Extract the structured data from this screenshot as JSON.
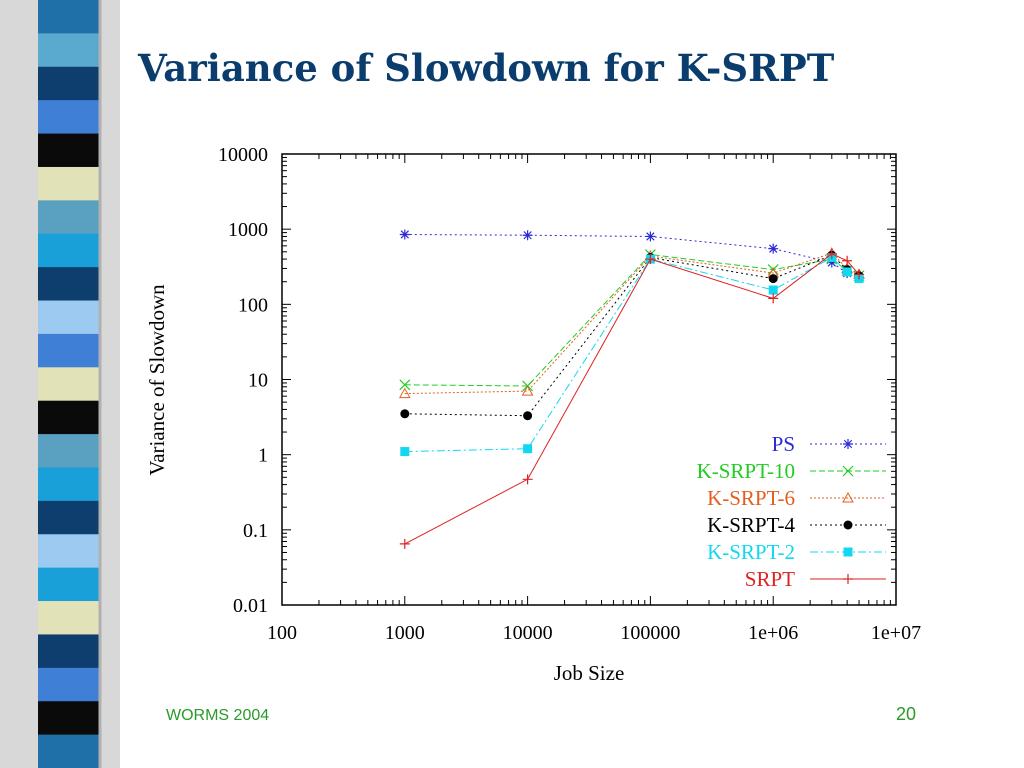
{
  "slide": {
    "title": "Variance of Slowdown for K-SRPT",
    "footer_left": "WORMS 2004",
    "page_number": "20",
    "stripe_colors": [
      "#1f6fa8",
      "#5aaad0",
      "#0d3e6e",
      "#3f7fd6",
      "#0a0a0a",
      "#e2e2b8",
      "#5aa0c0",
      "#1aa0d8",
      "#0d3e6e",
      "#9ccaf0",
      "#3f7fd6",
      "#e2e2b8",
      "#0a0a0a",
      "#5aa0c0",
      "#1aa0d8",
      "#0d3e6e",
      "#9ccaf0",
      "#1aa0d8",
      "#e2e2b8",
      "#0d3e6e",
      "#3f7fd6",
      "#0a0a0a",
      "#1f6fa8"
    ]
  },
  "chart_data": {
    "type": "line",
    "xlabel": "Job Size",
    "ylabel": "Variance of Slowdown",
    "x_scale": "log",
    "y_scale": "log",
    "xlim": [
      100,
      10000000
    ],
    "ylim": [
      0.01,
      10000
    ],
    "x_ticks": [
      "100",
      "1000",
      "10000",
      "100000",
      "1e+06",
      "1e+07"
    ],
    "y_ticks": [
      "10000",
      "1000",
      "100",
      "10",
      "1",
      "0.1",
      "0.01"
    ],
    "legend_position": "bottom-right",
    "x": [
      1000,
      10000,
      100000,
      1000000,
      3000000,
      4000000,
      5000000
    ],
    "series": [
      {
        "name": "PS",
        "values": [
          850,
          830,
          800,
          550,
          360,
          260,
          230
        ],
        "color": "#2a2ad8",
        "dash": "2,3",
        "marker": "asterisk"
      },
      {
        "name": "K-SRPT-10",
        "values": [
          8.5,
          8.2,
          460,
          290,
          400,
          280,
          240
        ],
        "color": "#22cc22",
        "dash": "6,3",
        "marker": "x"
      },
      {
        "name": "K-SRPT-6",
        "values": [
          6.5,
          7.0,
          440,
          260,
          480,
          300,
          250
        ],
        "color": "#e06020",
        "dash": "2,2",
        "marker": "triangle"
      },
      {
        "name": "K-SRPT-4",
        "values": [
          3.5,
          3.3,
          420,
          220,
          450,
          290,
          240
        ],
        "color": "#000000",
        "dash": "2,3",
        "marker": "dot"
      },
      {
        "name": "K-SRPT-2",
        "values": [
          1.1,
          1.2,
          400,
          155,
          420,
          270,
          220
        ],
        "color": "#11d8f0",
        "dash": "8,3,2,3",
        "marker": "square"
      },
      {
        "name": "SRPT",
        "values": [
          0.065,
          0.47,
          400,
          120,
          470,
          380,
          250
        ],
        "color": "#dd2222",
        "dash": "",
        "marker": "plus"
      }
    ]
  }
}
